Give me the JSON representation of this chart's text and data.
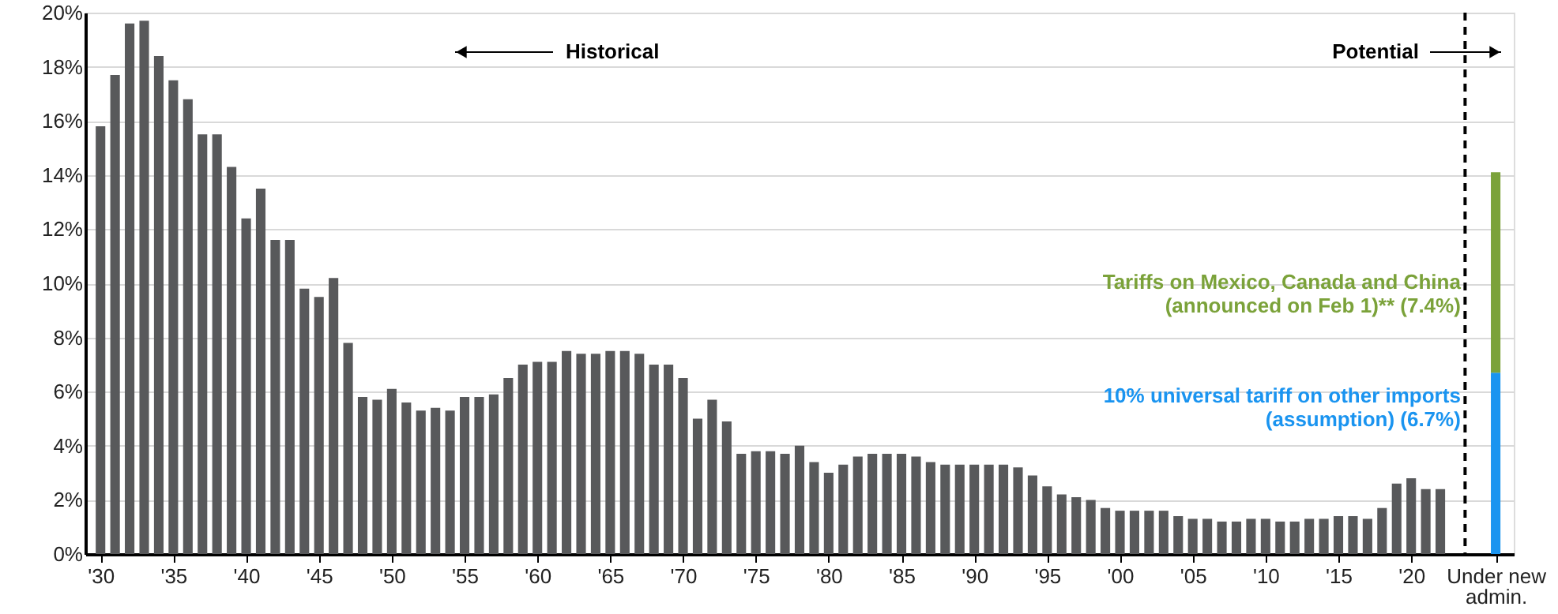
{
  "chart_data": {
    "type": "bar",
    "grid": "y",
    "xlim": [
      1929.5,
      2026.5
    ],
    "ylim": [
      0,
      20
    ],
    "xticks": [
      {
        "value": 1930,
        "label": "'30"
      },
      {
        "value": 1935,
        "label": "'35"
      },
      {
        "value": 1940,
        "label": "'40"
      },
      {
        "value": 1945,
        "label": "'45"
      },
      {
        "value": 1950,
        "label": "'50"
      },
      {
        "value": 1955,
        "label": "'55"
      },
      {
        "value": 1960,
        "label": "'60"
      },
      {
        "value": 1965,
        "label": "'65"
      },
      {
        "value": 1970,
        "label": "'70"
      },
      {
        "value": 1975,
        "label": "'75"
      },
      {
        "value": 1980,
        "label": "'80"
      },
      {
        "value": 1985,
        "label": "'85"
      },
      {
        "value": 1990,
        "label": "'90"
      },
      {
        "value": 1995,
        "label": "'95"
      },
      {
        "value": 2000,
        "label": "'00"
      },
      {
        "value": 2005,
        "label": "'05"
      },
      {
        "value": 2010,
        "label": "'10"
      },
      {
        "value": 2015,
        "label": "'15"
      },
      {
        "value": 2020,
        "label": "'20"
      },
      {
        "value": 2025.8,
        "label": "Under new admin."
      }
    ],
    "yticks": [
      {
        "value": 0,
        "label": "0%"
      },
      {
        "value": 2,
        "label": "2%"
      },
      {
        "value": 4,
        "label": "4%"
      },
      {
        "value": 6,
        "label": "6%"
      },
      {
        "value": 8,
        "label": "8%"
      },
      {
        "value": 10,
        "label": "10%"
      },
      {
        "value": 12,
        "label": "12%"
      },
      {
        "value": 14,
        "label": "14%"
      },
      {
        "value": 16,
        "label": "16%"
      },
      {
        "value": 18,
        "label": "18%"
      },
      {
        "value": 20,
        "label": "20%"
      }
    ],
    "series": [
      {
        "color": "#58595b",
        "x": [
          1930,
          1931,
          1932,
          1933,
          1934,
          1935,
          1936,
          1937,
          1938,
          1939,
          1940,
          1941,
          1942,
          1943,
          1944,
          1945,
          1946,
          1947,
          1948,
          1949,
          1950,
          1951,
          1952,
          1953,
          1954,
          1955,
          1956,
          1957,
          1958,
          1959,
          1960,
          1961,
          1962,
          1963,
          1964,
          1965,
          1966,
          1967,
          1968,
          1969,
          1970,
          1971,
          1972,
          1973,
          1974,
          1975,
          1976,
          1977,
          1978,
          1979,
          1980,
          1981,
          1982,
          1983,
          1984,
          1985,
          1986,
          1987,
          1988,
          1989,
          1990,
          1991,
          1992,
          1993,
          1994,
          1995,
          1996,
          1997,
          1998,
          1999,
          2000,
          2001,
          2002,
          2003,
          2004,
          2005,
          2006,
          2007,
          2008,
          2009,
          2010,
          2011,
          2012,
          2013,
          2014,
          2015,
          2016,
          2017,
          2018,
          2019,
          2020,
          2021,
          2022
        ],
        "values": [
          15.8,
          17.7,
          19.6,
          19.7,
          18.4,
          17.5,
          16.8,
          15.5,
          15.5,
          14.3,
          12.4,
          13.5,
          11.6,
          11.6,
          9.8,
          9.5,
          10.2,
          7.8,
          5.8,
          5.7,
          6.1,
          5.6,
          5.3,
          5.4,
          5.3,
          5.8,
          5.8,
          5.9,
          6.5,
          7.0,
          7.1,
          7.1,
          7.5,
          7.4,
          7.4,
          7.5,
          7.5,
          7.4,
          7.0,
          7.0,
          6.5,
          5.0,
          5.7,
          4.9,
          3.7,
          3.8,
          3.8,
          3.7,
          4.0,
          3.4,
          3.0,
          3.3,
          3.6,
          3.7,
          3.7,
          3.7,
          3.6,
          3.4,
          3.3,
          3.3,
          3.3,
          3.3,
          3.3,
          3.2,
          2.9,
          2.5,
          2.2,
          2.1,
          2.0,
          1.7,
          1.6,
          1.6,
          1.6,
          1.6,
          1.4,
          1.3,
          1.3,
          1.2,
          1.2,
          1.3,
          1.3,
          1.2,
          1.2,
          1.3,
          1.3,
          1.4,
          1.4,
          1.3,
          1.7,
          2.6,
          2.8,
          2.4,
          2.4
        ]
      },
      {
        "name": "10% universal tariff on other imports (assumption) (6.7%)",
        "color": "#1a94f0",
        "x": [
          2025.8
        ],
        "values": [
          6.7
        ]
      },
      {
        "name": "Tariffs on Mexico, Canada and China (announced on Feb 1)** (7.4%)",
        "color": "#7ba23a",
        "x": [
          2025.8
        ],
        "values": [
          7.4
        ],
        "base": [
          6.7
        ]
      }
    ],
    "ref_lines": [
      {
        "axis": "x",
        "value": 2023.7,
        "color": "#000000",
        "line_style": "dashed"
      }
    ],
    "annotations": [
      "Historical",
      "Potential"
    ]
  }
}
